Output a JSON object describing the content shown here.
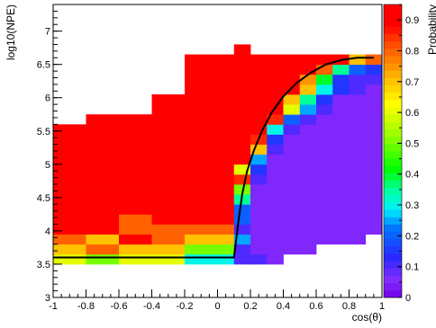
{
  "chart_data": {
    "type": "heatmap",
    "title": "",
    "xlabel": "cos(θ)",
    "ylabel": "log10(NPE)",
    "zlabel": "Probability",
    "xlim": [
      -1,
      1
    ],
    "ylim": [
      3,
      7.4
    ],
    "zlim": [
      0,
      0.95
    ],
    "x_ticks": [
      -1,
      -0.8,
      -0.6,
      -0.4,
      -0.2,
      0,
      0.2,
      0.4,
      0.6,
      0.8,
      1
    ],
    "x_tick_labels": [
      "-1",
      "-0.8",
      "-0.6",
      "-0.4",
      "-0.2",
      "0",
      "0.2",
      "0.4",
      "0.6",
      "0.8",
      "1"
    ],
    "y_ticks": [
      3,
      3.5,
      4,
      4.5,
      5,
      5.5,
      6,
      6.5,
      7
    ],
    "y_tick_labels": [
      "3",
      "3.5",
      "4",
      "4.5",
      "5",
      "5.5",
      "6",
      "6.5",
      "7"
    ],
    "z_ticks": [
      0,
      0.1,
      0.2,
      0.3,
      0.4,
      0.5,
      0.6,
      0.7,
      0.8,
      0.9
    ],
    "z_tick_labels": [
      "0",
      "0.1",
      "0.2",
      "0.3",
      "0.4",
      "0.5",
      "0.6",
      "0.7",
      "0.8",
      "0.9"
    ],
    "grid": false,
    "colormap": "rainbow",
    "x_bin_edges": [
      -1,
      -0.8,
      -0.6,
      -0.4,
      -0.2,
      0.1,
      0.2,
      0.3,
      0.4,
      0.5,
      0.6,
      0.7,
      0.8,
      0.9,
      1
    ],
    "y_bin_edges": [
      3.5,
      3.65,
      3.8,
      3.95,
      4.1,
      4.25,
      4.4,
      4.55,
      4.7,
      4.85,
      5,
      5.15,
      5.3,
      5.45,
      5.6,
      5.75,
      5.9,
      6.05,
      6.2,
      6.35,
      6.5,
      6.65,
      6.8
    ],
    "values": [
      [
        0.6,
        0.5,
        0.6,
        0.6,
        0.3,
        0.1,
        0.1,
        0.05,
        null,
        null,
        null,
        null,
        null,
        null
      ],
      [
        0.7,
        0.8,
        0.7,
        0.7,
        0.5,
        0.1,
        0.05,
        0.05,
        0.05,
        0.05,
        null,
        null,
        null,
        null
      ],
      [
        0.8,
        0.7,
        0.9,
        0.8,
        0.7,
        0.25,
        0.05,
        0.05,
        0.05,
        0.05,
        0.05,
        0.05,
        0.05,
        null
      ],
      [
        0.9,
        0.9,
        0.8,
        0.8,
        0.8,
        0.1,
        0.05,
        0.05,
        0.05,
        0.05,
        0.05,
        0.05,
        0.05,
        0.05
      ],
      [
        0.9,
        0.9,
        0.8,
        0.9,
        0.9,
        0.2,
        0.05,
        0.05,
        0.05,
        0.05,
        0.05,
        0.05,
        0.05,
        0.05
      ],
      [
        0.95,
        0.95,
        0.95,
        0.95,
        0.9,
        0.2,
        0.05,
        0.05,
        0.05,
        0.05,
        0.05,
        0.05,
        0.05,
        0.05
      ],
      [
        0.95,
        0.95,
        0.95,
        0.95,
        0.95,
        0.35,
        0.05,
        0.05,
        0.05,
        0.05,
        0.05,
        0.05,
        0.05,
        0.05
      ],
      [
        0.95,
        0.95,
        0.95,
        0.95,
        0.95,
        0.5,
        0.05,
        0.05,
        0.05,
        0.05,
        0.05,
        0.05,
        0.05,
        0.05
      ],
      [
        0.95,
        0.95,
        0.95,
        0.95,
        0.95,
        0.85,
        0.1,
        0.05,
        0.05,
        0.05,
        0.05,
        0.05,
        0.05,
        0.05
      ],
      [
        0.95,
        0.95,
        0.95,
        0.95,
        0.95,
        0.6,
        0.15,
        0.05,
        0.05,
        0.05,
        0.05,
        0.05,
        0.05,
        0.05
      ],
      [
        0.95,
        0.95,
        0.95,
        0.95,
        0.95,
        0.95,
        0.25,
        0.05,
        0.05,
        0.05,
        0.05,
        0.05,
        0.05,
        0.05
      ],
      [
        0.95,
        0.95,
        0.95,
        0.95,
        0.95,
        0.95,
        0.7,
        0.1,
        0.05,
        0.05,
        0.05,
        0.05,
        0.05,
        0.05
      ],
      [
        0.95,
        0.95,
        0.95,
        0.95,
        0.95,
        0.95,
        0.85,
        0.15,
        0.05,
        0.05,
        0.05,
        0.05,
        0.05,
        0.05
      ],
      [
        0.95,
        0.95,
        0.95,
        0.95,
        0.95,
        0.95,
        0.95,
        0.3,
        0.1,
        0.05,
        0.05,
        0.05,
        0.05,
        0.05
      ],
      [
        null,
        0.95,
        0.95,
        0.95,
        0.95,
        0.95,
        0.95,
        0.85,
        0.2,
        0.1,
        0.05,
        0.05,
        0.05,
        0.05
      ],
      [
        null,
        null,
        null,
        0.95,
        0.95,
        0.95,
        0.95,
        0.95,
        0.6,
        0.25,
        0.1,
        0.05,
        0.05,
        0.05
      ],
      [
        null,
        null,
        null,
        0.95,
        0.95,
        0.95,
        0.95,
        0.95,
        0.7,
        0.35,
        0.15,
        0.05,
        0.05,
        0.05
      ],
      [
        null,
        null,
        null,
        null,
        0.95,
        0.95,
        0.95,
        0.95,
        0.95,
        0.7,
        0.3,
        0.15,
        0.1,
        0.05
      ],
      [
        null,
        null,
        null,
        null,
        0.95,
        0.95,
        0.95,
        0.95,
        0.95,
        0.75,
        0.4,
        0.15,
        0.1,
        0.1
      ],
      [
        null,
        null,
        null,
        null,
        0.95,
        0.95,
        0.95,
        0.95,
        0.95,
        0.95,
        0.8,
        0.35,
        0.2,
        0.15
      ],
      [
        null,
        null,
        null,
        null,
        0.95,
        0.95,
        0.95,
        0.95,
        0.95,
        0.95,
        0.95,
        0.95,
        0.7,
        0.8
      ],
      [
        null,
        null,
        null,
        null,
        null,
        0.95,
        null,
        null,
        null,
        null,
        null,
        null,
        null,
        null
      ]
    ],
    "curve": {
      "x": [
        -1,
        0.1,
        0.11,
        0.13,
        0.15,
        0.18,
        0.22,
        0.27,
        0.33,
        0.4,
        0.48,
        0.57,
        0.66,
        0.76,
        0.85,
        0.95
      ],
      "y": [
        3.6,
        3.6,
        3.8,
        4.2,
        4.55,
        4.9,
        5.2,
        5.5,
        5.78,
        6.02,
        6.22,
        6.38,
        6.5,
        6.57,
        6.6,
        6.6
      ]
    }
  }
}
